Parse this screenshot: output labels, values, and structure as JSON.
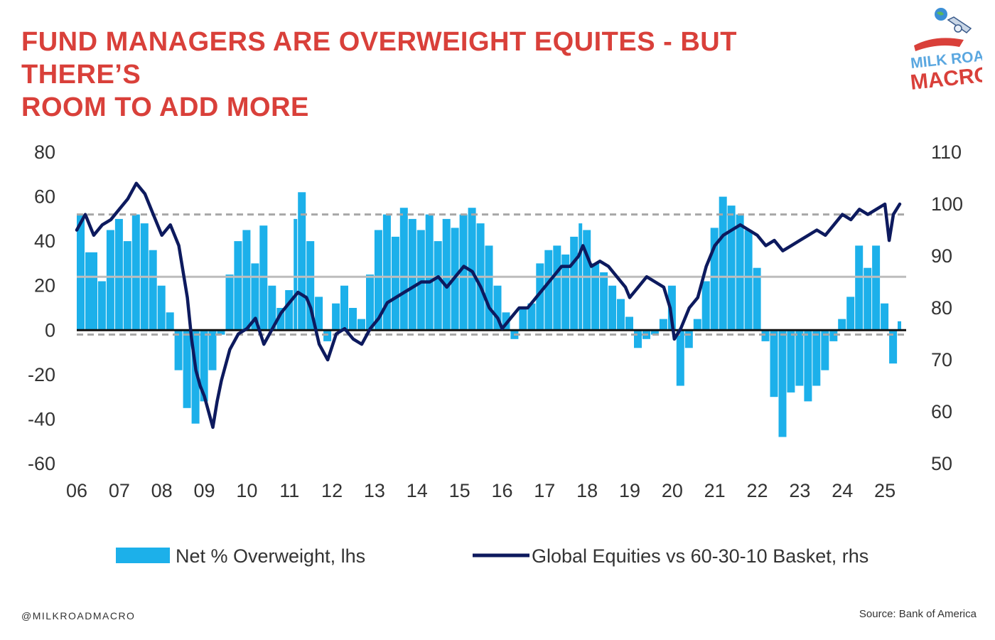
{
  "header": {
    "title_line1": "FUND MANAGERS ARE OVERWEIGHT EQUITES - BUT THERE’S",
    "title_line2": "ROOM TO ADD MORE"
  },
  "logo": {
    "line1": "MILK ROAD",
    "line2": "MACRO",
    "icon": "globe-rocket-icon"
  },
  "footer": {
    "handle": "@MILKROADMACRO",
    "source": "Source: Bank of America"
  },
  "colors": {
    "bars": "#1cb0ea",
    "line": "#0d1a5e",
    "title": "#d9403a",
    "ref_solid": "#bdbdbd",
    "ref_dashed": "#a8a8a8"
  },
  "chart_data": {
    "type": "bar",
    "categories": [
      "06",
      "07",
      "08",
      "09",
      "10",
      "11",
      "12",
      "13",
      "14",
      "15",
      "16",
      "17",
      "18",
      "19",
      "20",
      "21",
      "22",
      "23",
      "24",
      "25"
    ],
    "y_left": {
      "ticks": [
        "80",
        "60",
        "40",
        "20",
        "0",
        "-20",
        "-40",
        "-60"
      ],
      "range": [
        -60,
        80
      ]
    },
    "y_right": {
      "ticks": [
        "110",
        "100",
        "90",
        "80",
        "70",
        "60",
        "50"
      ],
      "range": [
        50,
        110
      ]
    },
    "reference_lines_lhs": [
      {
        "value": 24,
        "style": "solid"
      },
      {
        "value": 52,
        "style": "dashed"
      },
      {
        "value": -2,
        "style": "dashed"
      },
      {
        "value": 0,
        "style": "zero"
      }
    ],
    "series": [
      {
        "name": "Net % Overweight, lhs",
        "kind": "bar",
        "axis": "left",
        "points": [
          [
            2006.0,
            52
          ],
          [
            2006.2,
            35
          ],
          [
            2006.5,
            22
          ],
          [
            2006.7,
            45
          ],
          [
            2006.9,
            50
          ],
          [
            2007.1,
            40
          ],
          [
            2007.3,
            52
          ],
          [
            2007.5,
            48
          ],
          [
            2007.7,
            36
          ],
          [
            2007.9,
            20
          ],
          [
            2008.1,
            8
          ],
          [
            2008.3,
            -18
          ],
          [
            2008.5,
            -35
          ],
          [
            2008.7,
            -42
          ],
          [
            2008.9,
            -32
          ],
          [
            2009.1,
            -18
          ],
          [
            2009.3,
            -2
          ],
          [
            2009.5,
            25
          ],
          [
            2009.7,
            40
          ],
          [
            2009.9,
            45
          ],
          [
            2010.1,
            30
          ],
          [
            2010.3,
            47
          ],
          [
            2010.5,
            20
          ],
          [
            2010.7,
            10
          ],
          [
            2010.9,
            18
          ],
          [
            2011.1,
            50
          ],
          [
            2011.2,
            62
          ],
          [
            2011.4,
            40
          ],
          [
            2011.6,
            15
          ],
          [
            2011.8,
            -5
          ],
          [
            2012.0,
            12
          ],
          [
            2012.2,
            20
          ],
          [
            2012.4,
            10
          ],
          [
            2012.6,
            5
          ],
          [
            2012.8,
            25
          ],
          [
            2013.0,
            45
          ],
          [
            2013.2,
            52
          ],
          [
            2013.4,
            42
          ],
          [
            2013.6,
            55
          ],
          [
            2013.8,
            50
          ],
          [
            2014.0,
            45
          ],
          [
            2014.2,
            52
          ],
          [
            2014.4,
            40
          ],
          [
            2014.6,
            50
          ],
          [
            2014.8,
            46
          ],
          [
            2015.0,
            52
          ],
          [
            2015.2,
            55
          ],
          [
            2015.4,
            48
          ],
          [
            2015.6,
            38
          ],
          [
            2015.8,
            20
          ],
          [
            2016.0,
            8
          ],
          [
            2016.2,
            -4
          ],
          [
            2016.4,
            10
          ],
          [
            2016.6,
            12
          ],
          [
            2016.8,
            30
          ],
          [
            2017.0,
            36
          ],
          [
            2017.2,
            38
          ],
          [
            2017.4,
            34
          ],
          [
            2017.6,
            42
          ],
          [
            2017.8,
            48
          ],
          [
            2017.9,
            45
          ],
          [
            2018.1,
            30
          ],
          [
            2018.3,
            26
          ],
          [
            2018.5,
            20
          ],
          [
            2018.7,
            14
          ],
          [
            2018.9,
            6
          ],
          [
            2019.1,
            -8
          ],
          [
            2019.3,
            -4
          ],
          [
            2019.5,
            -2
          ],
          [
            2019.7,
            5
          ],
          [
            2019.9,
            20
          ],
          [
            2020.1,
            -25
          ],
          [
            2020.3,
            -8
          ],
          [
            2020.5,
            5
          ],
          [
            2020.7,
            22
          ],
          [
            2020.9,
            46
          ],
          [
            2021.1,
            60
          ],
          [
            2021.3,
            56
          ],
          [
            2021.5,
            52
          ],
          [
            2021.7,
            45
          ],
          [
            2021.9,
            28
          ],
          [
            2022.1,
            -5
          ],
          [
            2022.3,
            -30
          ],
          [
            2022.5,
            -48
          ],
          [
            2022.7,
            -28
          ],
          [
            2022.9,
            -25
          ],
          [
            2023.1,
            -32
          ],
          [
            2023.3,
            -25
          ],
          [
            2023.5,
            -18
          ],
          [
            2023.7,
            -5
          ],
          [
            2023.9,
            5
          ],
          [
            2024.1,
            15
          ],
          [
            2024.3,
            38
          ],
          [
            2024.5,
            28
          ],
          [
            2024.7,
            38
          ],
          [
            2024.9,
            12
          ],
          [
            2025.1,
            -15
          ],
          [
            2025.3,
            4
          ]
        ]
      },
      {
        "name": "Global Equities vs 60-30-10 Basket, rhs",
        "kind": "line",
        "axis": "right",
        "points": [
          [
            2006.0,
            95
          ],
          [
            2006.2,
            98
          ],
          [
            2006.4,
            94
          ],
          [
            2006.6,
            96
          ],
          [
            2006.8,
            97
          ],
          [
            2007.0,
            99
          ],
          [
            2007.2,
            101
          ],
          [
            2007.4,
            104
          ],
          [
            2007.6,
            102
          ],
          [
            2007.8,
            98
          ],
          [
            2008.0,
            94
          ],
          [
            2008.2,
            96
          ],
          [
            2008.4,
            92
          ],
          [
            2008.6,
            82
          ],
          [
            2008.7,
            74
          ],
          [
            2008.8,
            68
          ],
          [
            2008.9,
            65
          ],
          [
            2009.0,
            63
          ],
          [
            2009.1,
            60
          ],
          [
            2009.2,
            57
          ],
          [
            2009.3,
            62
          ],
          [
            2009.4,
            66
          ],
          [
            2009.6,
            72
          ],
          [
            2009.8,
            75
          ],
          [
            2010.0,
            76
          ],
          [
            2010.2,
            78
          ],
          [
            2010.4,
            73
          ],
          [
            2010.6,
            76
          ],
          [
            2010.8,
            79
          ],
          [
            2011.0,
            81
          ],
          [
            2011.2,
            83
          ],
          [
            2011.4,
            82
          ],
          [
            2011.5,
            80
          ],
          [
            2011.7,
            73
          ],
          [
            2011.9,
            70
          ],
          [
            2012.1,
            75
          ],
          [
            2012.3,
            76
          ],
          [
            2012.5,
            74
          ],
          [
            2012.7,
            73
          ],
          [
            2012.9,
            76
          ],
          [
            2013.1,
            78
          ],
          [
            2013.3,
            81
          ],
          [
            2013.5,
            82
          ],
          [
            2013.7,
            83
          ],
          [
            2013.9,
            84
          ],
          [
            2014.1,
            85
          ],
          [
            2014.3,
            85
          ],
          [
            2014.5,
            86
          ],
          [
            2014.7,
            84
          ],
          [
            2014.9,
            86
          ],
          [
            2015.1,
            88
          ],
          [
            2015.3,
            87
          ],
          [
            2015.5,
            84
          ],
          [
            2015.7,
            80
          ],
          [
            2015.9,
            78
          ],
          [
            2016.0,
            76
          ],
          [
            2016.2,
            78
          ],
          [
            2016.4,
            80
          ],
          [
            2016.6,
            80
          ],
          [
            2016.8,
            82
          ],
          [
            2017.0,
            84
          ],
          [
            2017.2,
            86
          ],
          [
            2017.4,
            88
          ],
          [
            2017.6,
            88
          ],
          [
            2017.8,
            90
          ],
          [
            2017.9,
            92
          ],
          [
            2018.1,
            88
          ],
          [
            2018.3,
            89
          ],
          [
            2018.5,
            88
          ],
          [
            2018.7,
            86
          ],
          [
            2018.9,
            84
          ],
          [
            2019.0,
            82
          ],
          [
            2019.2,
            84
          ],
          [
            2019.4,
            86
          ],
          [
            2019.6,
            85
          ],
          [
            2019.8,
            84
          ],
          [
            2019.95,
            80
          ],
          [
            2020.05,
            74
          ],
          [
            2020.2,
            76
          ],
          [
            2020.4,
            80
          ],
          [
            2020.6,
            82
          ],
          [
            2020.8,
            88
          ],
          [
            2021.0,
            92
          ],
          [
            2021.2,
            94
          ],
          [
            2021.4,
            95
          ],
          [
            2021.6,
            96
          ],
          [
            2021.8,
            95
          ],
          [
            2022.0,
            94
          ],
          [
            2022.2,
            92
          ],
          [
            2022.4,
            93
          ],
          [
            2022.6,
            91
          ],
          [
            2022.8,
            92
          ],
          [
            2023.0,
            93
          ],
          [
            2023.2,
            94
          ],
          [
            2023.4,
            95
          ],
          [
            2023.6,
            94
          ],
          [
            2023.8,
            96
          ],
          [
            2024.0,
            98
          ],
          [
            2024.2,
            97
          ],
          [
            2024.4,
            99
          ],
          [
            2024.6,
            98
          ],
          [
            2024.8,
            99
          ],
          [
            2025.0,
            100
          ],
          [
            2025.1,
            93
          ],
          [
            2025.2,
            98
          ],
          [
            2025.35,
            100
          ]
        ]
      }
    ],
    "grid": false,
    "legend_position": "bottom"
  }
}
